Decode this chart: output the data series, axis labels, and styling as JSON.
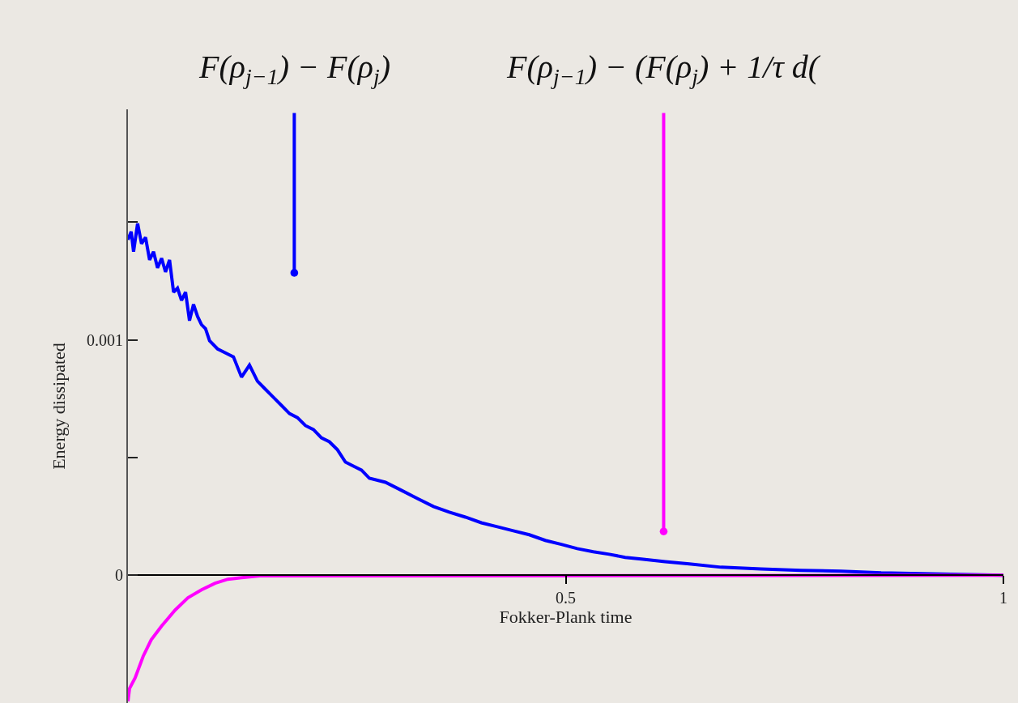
{
  "chart_data": {
    "type": "line",
    "xlabel": "Fokker-Plank time",
    "ylabel": "Energy dissipated",
    "xlim": [
      0,
      1
    ],
    "ylim": [
      -0.000543,
      0.00198
    ],
    "xticks": [
      0.5,
      1
    ],
    "yticks": [
      0,
      {
        "value": 0.0005,
        "label": null
      },
      0.001,
      {
        "value": 0.0015,
        "label": null
      }
    ],
    "grid": false,
    "line_style": "solid",
    "marker": "none",
    "series": [
      {
        "color": "#0000ff",
        "x": [
          0,
          0.0037,
          0.0064,
          0.011,
          0.0155,
          0.0201,
          0.0247,
          0.0292,
          0.0338,
          0.0384,
          0.0429,
          0.0475,
          0.0521,
          0.0566,
          0.0612,
          0.0658,
          0.0703,
          0.0749,
          0.0795,
          0.084,
          0.0886,
          0.0932,
          0.1023,
          0.1114,
          0.1205,
          0.1297,
          0.1388,
          0.1479,
          0.1571,
          0.1662,
          0.1753,
          0.1845,
          0.1936,
          0.2027,
          0.2119,
          0.221,
          0.2301,
          0.2393,
          0.2484,
          0.2575,
          0.2667,
          0.2758,
          0.2941,
          0.3123,
          0.3306,
          0.3489,
          0.3671,
          0.3854,
          0.4037,
          0.4219,
          0.4402,
          0.4584,
          0.4767,
          0.495,
          0.5132,
          0.5315,
          0.5498,
          0.568,
          0.5863,
          0.6137,
          0.6411,
          0.6776,
          0.7233,
          0.7689,
          0.8146,
          0.8603,
          0.9059,
          0.9516,
          1
        ],
        "values": [
          0.001426,
          0.00146,
          0.001375,
          0.001495,
          0.001409,
          0.001436,
          0.00134,
          0.001375,
          0.001306,
          0.001347,
          0.001289,
          0.00134,
          0.001203,
          0.00122,
          0.001168,
          0.001203,
          0.001082,
          0.001151,
          0.0011,
          0.001065,
          0.001048,
          0.000997,
          0.000962,
          0.000945,
          0.000928,
          0.000842,
          0.000893,
          0.000825,
          0.00079,
          0.000756,
          0.000722,
          0.000687,
          0.00067,
          0.000636,
          0.000619,
          0.000584,
          0.000567,
          0.000533,
          0.000481,
          0.000464,
          0.000447,
          0.000412,
          0.000395,
          0.000361,
          0.000326,
          0.000292,
          0.000268,
          0.000247,
          0.000223,
          0.000206,
          0.000189,
          0.000172,
          0.000148,
          0.000131,
          0.000113,
          0.0001,
          8.9e-05,
          7.6e-05,
          6.9e-05,
          5.8e-05,
          4.8e-05,
          3.4e-05,
          2.7e-05,
          2.1e-05,
          1.7e-05,
          1e-05,
          7e-06,
          3e-06,
          0
        ]
      },
      {
        "color": "#ff00ff",
        "x": [
          0,
          0.0018,
          0.0082,
          0.0174,
          0.0265,
          0.0384,
          0.0539,
          0.0685,
          0.084,
          0.0995,
          0.1142,
          0.1297,
          0.1507,
          1
        ],
        "values": [
          -0.000536,
          -0.000481,
          -0.000436,
          -0.000344,
          -0.000275,
          -0.000216,
          -0.000148,
          -9.6e-05,
          -6.2e-05,
          -3.4e-05,
          -1.7e-05,
          -1e-05,
          -3e-06,
          0
        ]
      }
    ],
    "annotations": [
      {
        "text": "F(ρ$_{j−1}$) − F(ρ$_{j}$)",
        "x": 0.19,
        "y": 0.001285
      },
      {
        "text": "F(ρ$_{j−1}$) − (F(ρ$_{j}$) + 1/τ d(",
        "x": 0.6119,
        "y": 0.000186
      }
    ]
  }
}
